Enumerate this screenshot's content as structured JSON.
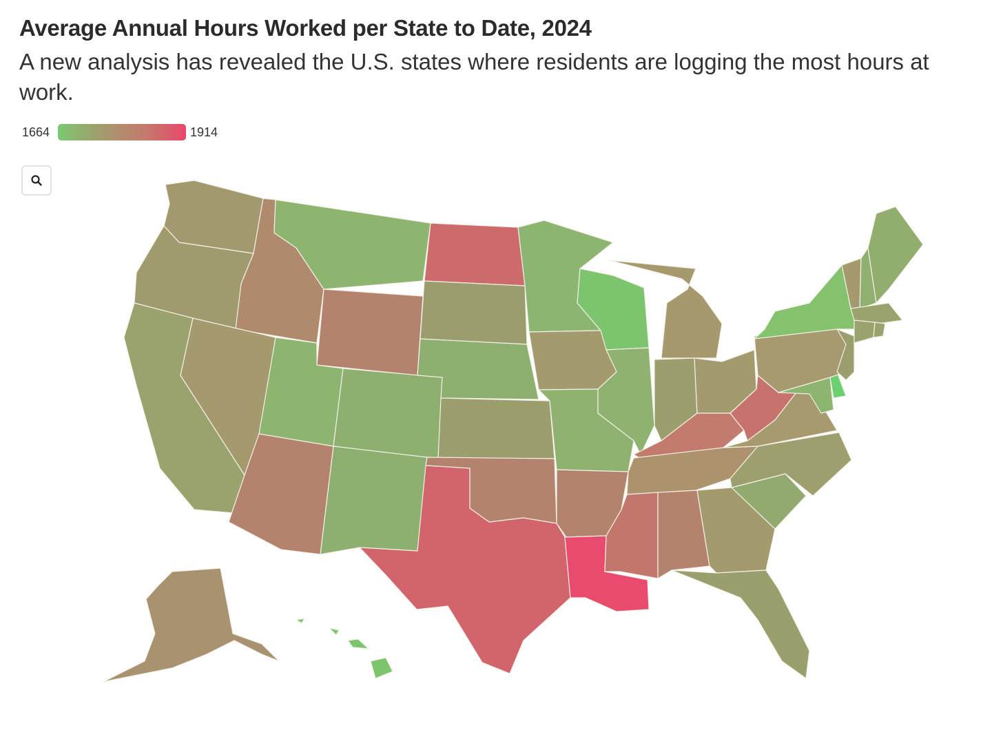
{
  "title": "Average Annual Hours Worked per State to Date, 2024",
  "subtitle": "A new analysis has revealed the U.S. states where residents are logging the most hours at work.",
  "legend": {
    "min": "1664",
    "max": "1914",
    "colors": [
      "#7cc870",
      "#a49a6e",
      "#c47a6c",
      "#e8486c"
    ]
  },
  "zoom_control": {
    "icon": "search-icon"
  },
  "states": [
    {
      "id": "WA",
      "color": "#a29a6e"
    },
    {
      "id": "OR",
      "color": "#a09b6e"
    },
    {
      "id": "CA",
      "color": "#9aa36e"
    },
    {
      "id": "ID",
      "color": "#b08a6c"
    },
    {
      "id": "NV",
      "color": "#a49a6e"
    },
    {
      "id": "MT",
      "color": "#8db570"
    },
    {
      "id": "WY",
      "color": "#b4836d"
    },
    {
      "id": "UT",
      "color": "#8db570"
    },
    {
      "id": "AZ",
      "color": "#b4836d"
    },
    {
      "id": "CO",
      "color": "#8db070"
    },
    {
      "id": "NM",
      "color": "#8db070"
    },
    {
      "id": "ND",
      "color": "#cc6a6c"
    },
    {
      "id": "SD",
      "color": "#9c9d6e"
    },
    {
      "id": "NE",
      "color": "#8db070"
    },
    {
      "id": "KS",
      "color": "#9c9e6e"
    },
    {
      "id": "OK",
      "color": "#b4836d"
    },
    {
      "id": "TX",
      "color": "#d2646c"
    },
    {
      "id": "MN",
      "color": "#8bb570"
    },
    {
      "id": "IA",
      "color": "#a39a6e"
    },
    {
      "id": "MO",
      "color": "#8fb270"
    },
    {
      "id": "AR",
      "color": "#b4836d"
    },
    {
      "id": "LA",
      "color": "#e84b6e"
    },
    {
      "id": "WI",
      "color": "#7cc46e"
    },
    {
      "id": "IL",
      "color": "#8fb270"
    },
    {
      "id": "MI",
      "color": "#a6996e"
    },
    {
      "id": "IN",
      "color": "#9c9e6e"
    },
    {
      "id": "OH",
      "color": "#a39a6e"
    },
    {
      "id": "KY",
      "color": "#c27b6c"
    },
    {
      "id": "TN",
      "color": "#ac926d"
    },
    {
      "id": "MS",
      "color": "#c3776c"
    },
    {
      "id": "AL",
      "color": "#b4836d"
    },
    {
      "id": "GA",
      "color": "#a39a6e"
    },
    {
      "id": "FL",
      "color": "#9b9f6e"
    },
    {
      "id": "SC",
      "color": "#92aa6f"
    },
    {
      "id": "NC",
      "color": "#9da06e"
    },
    {
      "id": "VA",
      "color": "#a69a6e"
    },
    {
      "id": "WV",
      "color": "#c7726c"
    },
    {
      "id": "PA",
      "color": "#a69a6e"
    },
    {
      "id": "NY",
      "color": "#84c26e"
    },
    {
      "id": "NJ",
      "color": "#9b9f6e"
    },
    {
      "id": "DE",
      "color": "#6bd070"
    },
    {
      "id": "MD",
      "color": "#8db570"
    },
    {
      "id": "VT",
      "color": "#a49a6e"
    },
    {
      "id": "NH",
      "color": "#8fb070"
    },
    {
      "id": "ME",
      "color": "#92ae6f"
    },
    {
      "id": "MA",
      "color": "#9aa36e"
    },
    {
      "id": "CT",
      "color": "#9aa36e"
    },
    {
      "id": "RI",
      "color": "#9aa36e"
    },
    {
      "id": "AK",
      "color": "#a89270"
    },
    {
      "id": "HI",
      "color": "#7cc46e"
    }
  ]
}
